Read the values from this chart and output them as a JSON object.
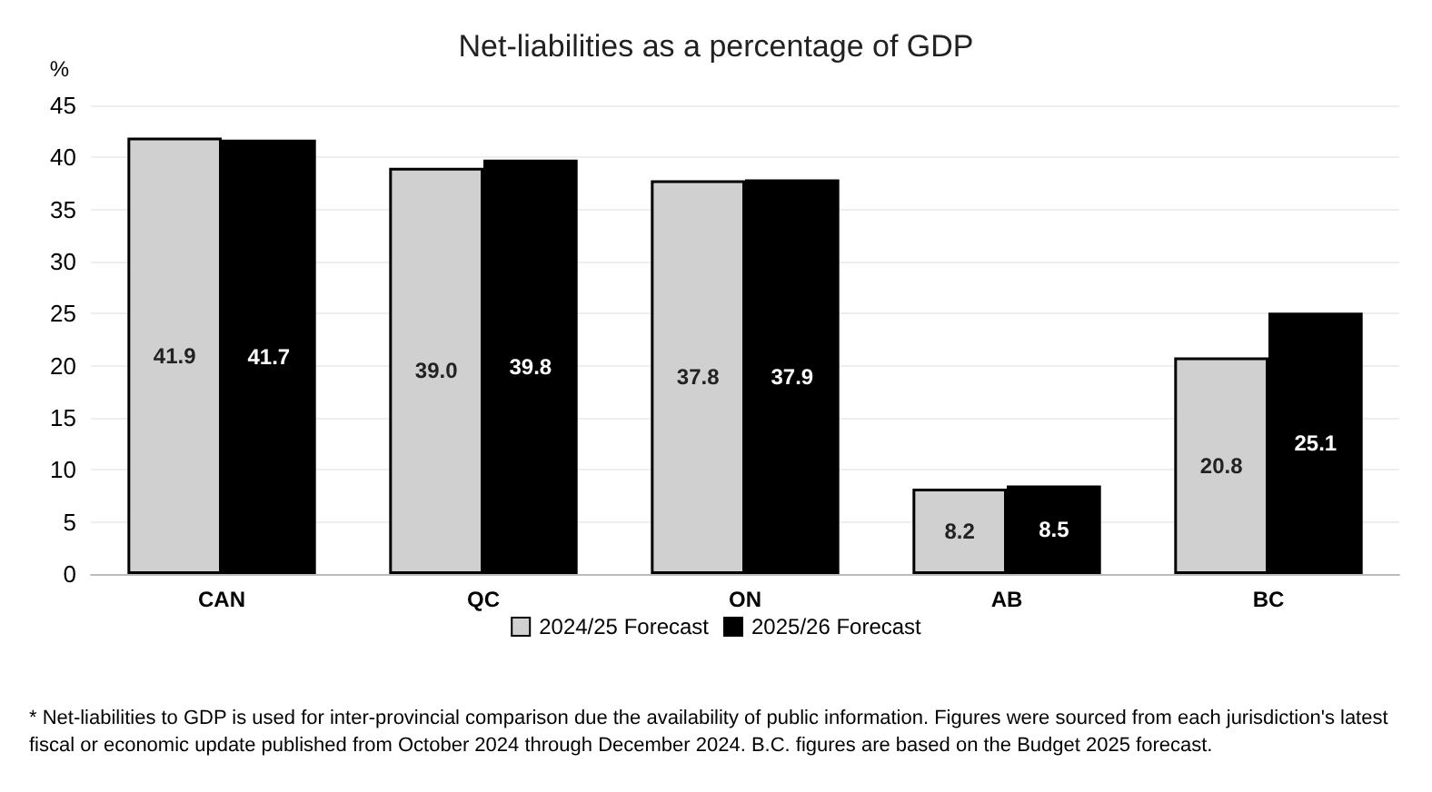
{
  "chart_data": {
    "type": "bar",
    "title": "Net-liabilities as a percentage of GDP",
    "ylabel": "%",
    "categories": [
      "CAN",
      "QC",
      "ON",
      "AB",
      "BC"
    ],
    "series": [
      {
        "name": "2024/25 Forecast",
        "color": "#d0d0d0",
        "values": [
          41.9,
          39.0,
          37.8,
          8.2,
          20.8
        ],
        "value_labels": [
          "41.9",
          "39.0",
          "37.8",
          "8.2",
          "20.8"
        ]
      },
      {
        "name": "2025/26 Forecast",
        "color": "#000000",
        "values": [
          41.7,
          39.8,
          37.9,
          8.5,
          25.1
        ],
        "value_labels": [
          "41.7",
          "39.8",
          "37.9",
          "8.5",
          "25.1"
        ]
      }
    ],
    "ylim": [
      0,
      45
    ],
    "yticks": [
      0,
      5,
      10,
      15,
      20,
      25,
      30,
      35,
      40,
      45
    ],
    "grid": "y",
    "legend": "bottom",
    "annotations": [
      "* Net-liabilities to GDP is used for inter-provincial comparison due the availability of public information. Figures were sourced from each jurisdiction's latest fiscal or economic update published from October 2024 through December 2024. B.C. figures are based on the Budget 2025 forecast."
    ]
  }
}
